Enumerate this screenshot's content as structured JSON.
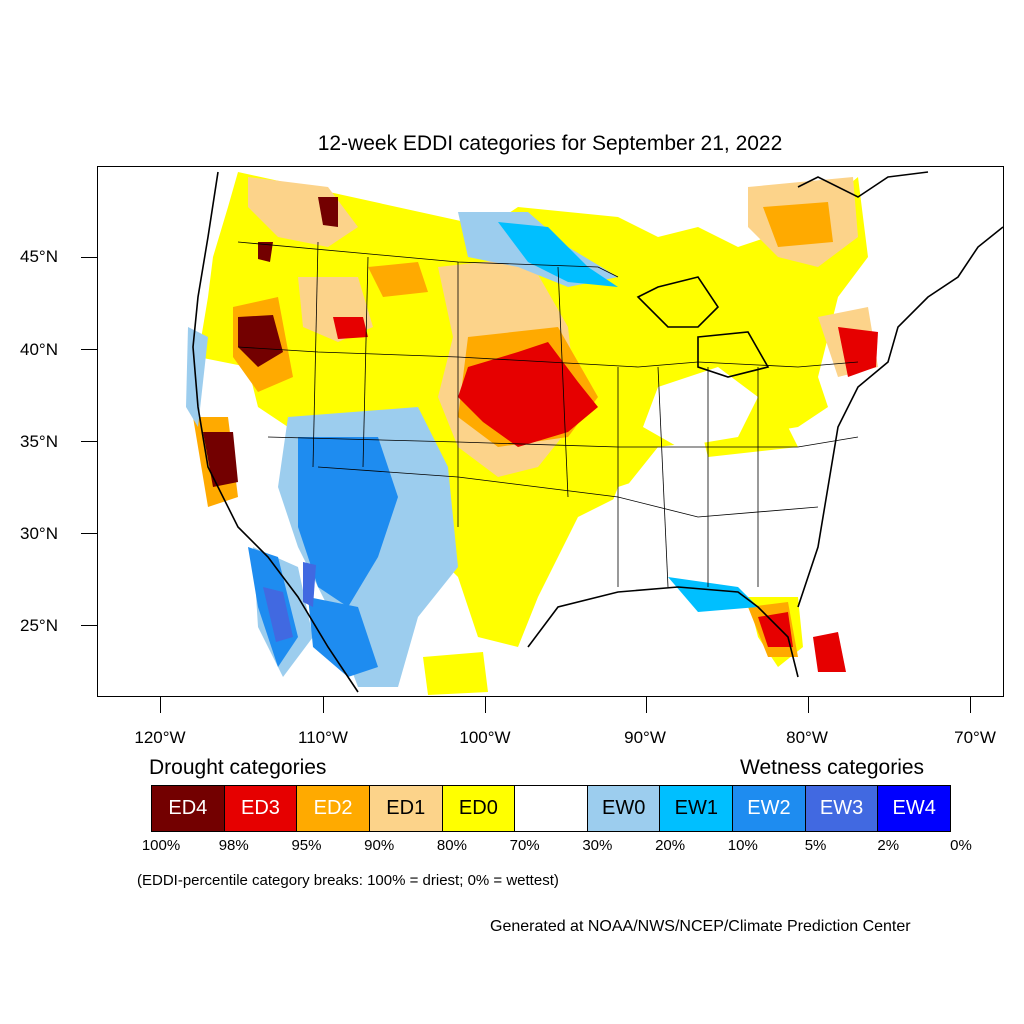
{
  "title": "12-week EDDI categories for September 21, 2022",
  "lat_labels": [
    "45°N",
    "40°N",
    "35°N",
    "30°N",
    "25°N"
  ],
  "lon_labels": [
    "120°W",
    "110°W",
    "100°W",
    "90°W",
    "80°W",
    "70°W"
  ],
  "legend": {
    "drought_heading": "Drought categories",
    "wetness_heading": "Wetness categories",
    "categories": [
      {
        "label": "ED4",
        "color": "#730000",
        "text_color": "#ffffff"
      },
      {
        "label": "ED3",
        "color": "#e60000",
        "text_color": "#ffffff"
      },
      {
        "label": "ED2",
        "color": "#ffaa00",
        "text_color": "#ffffff"
      },
      {
        "label": "ED1",
        "color": "#fcd38a",
        "text_color": "#000000"
      },
      {
        "label": "ED0",
        "color": "#ffff00",
        "text_color": "#000000"
      },
      {
        "label": "",
        "color": "#ffffff",
        "text_color": "#000000"
      },
      {
        "label": "EW0",
        "color": "#9ccdee",
        "text_color": "#000000"
      },
      {
        "label": "EW1",
        "color": "#00bfff",
        "text_color": "#000000"
      },
      {
        "label": "EW2",
        "color": "#1e8cf0",
        "text_color": "#ffffff"
      },
      {
        "label": "EW3",
        "color": "#4169e1",
        "text_color": "#ffffff"
      },
      {
        "label": "EW4",
        "color": "#0000ff",
        "text_color": "#ffffff"
      }
    ],
    "breaks": [
      "100%",
      "98%",
      "95%",
      "90%",
      "80%",
      "70%",
      "30%",
      "20%",
      "10%",
      "5%",
      "2%",
      "0%"
    ]
  },
  "footnote": "(EDDI-percentile category breaks: 100% = driest; 0% = wettest)",
  "credit": "Generated at NOAA/NWS/NCEP/Climate Prediction Center"
}
